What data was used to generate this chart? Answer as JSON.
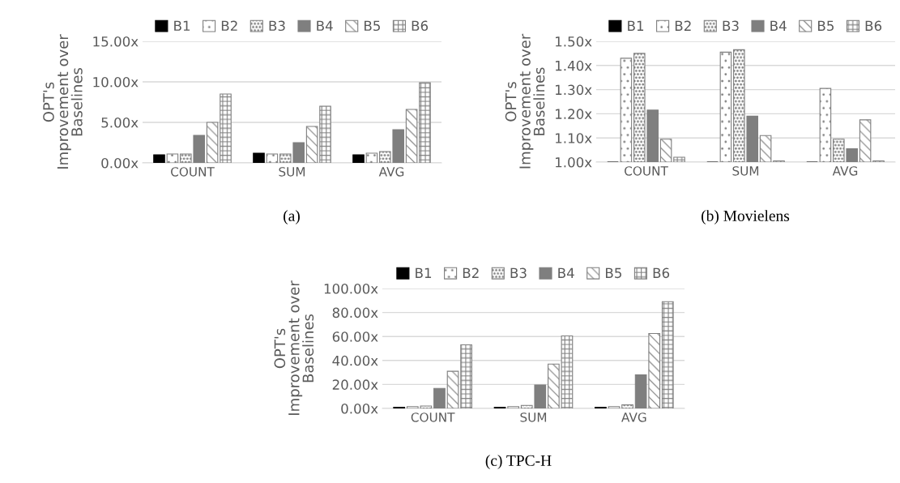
{
  "chart_data": [
    {
      "type": "bar",
      "categories": [
        "COUNT",
        "SUM",
        "AVG"
      ],
      "ylabel": "OPT's\nImprovement over\nBaselines",
      "legend": "top",
      "grid": "y",
      "ylim": [
        0,
        15
      ],
      "yticks": [
        {
          "value": 0,
          "label": "0.00x"
        },
        {
          "value": 5,
          "label": "5.00x"
        },
        {
          "value": 10,
          "label": "10.00x"
        },
        {
          "value": 15,
          "label": "15.00x"
        }
      ],
      "annotations": [
        "(a)"
      ],
      "series": [
        {
          "name": "B1",
          "color": "#000000",
          "values": [
            1.0,
            1.2,
            1.0
          ]
        },
        {
          "name": "B2",
          "color": "#7f7f7f",
          "values": [
            1.1,
            1.1,
            1.2
          ]
        },
        {
          "name": "B3",
          "color": "#7f7f7f",
          "values": [
            1.1,
            1.1,
            1.4
          ]
        },
        {
          "name": "B4",
          "color": "#7f7f7f",
          "values": [
            3.4,
            2.5,
            4.1
          ]
        },
        {
          "name": "B5",
          "color": "#7f7f7f",
          "values": [
            5.0,
            4.5,
            6.6
          ]
        },
        {
          "name": "B6",
          "color": "#7f7f7f",
          "values": [
            8.5,
            7.0,
            9.9
          ]
        }
      ]
    },
    {
      "type": "bar",
      "categories": [
        "COUNT",
        "SUM",
        "AVG"
      ],
      "ylabel": "OPT's\nImprovement over\nBaselines",
      "legend": "top",
      "grid": "y",
      "ylim": [
        1,
        1.5
      ],
      "yticks": [
        {
          "value": 1.0,
          "label": "1.00x"
        },
        {
          "value": 1.1,
          "label": "1.10x"
        },
        {
          "value": 1.2,
          "label": "1.20x"
        },
        {
          "value": 1.3,
          "label": "1.30x"
        },
        {
          "value": 1.4,
          "label": "1.40x"
        },
        {
          "value": 1.5,
          "label": "1.50x"
        }
      ],
      "annotations": [
        "(b) Movielens"
      ],
      "series": [
        {
          "name": "B1",
          "color": "#000000",
          "values": [
            1.0,
            1.0,
            1.0
          ]
        },
        {
          "name": "B2",
          "color": "#7f7f7f",
          "values": [
            1.43,
            1.455,
            1.305
          ]
        },
        {
          "name": "B3",
          "color": "#7f7f7f",
          "values": [
            1.45,
            1.465,
            1.095
          ]
        },
        {
          "name": "B4",
          "color": "#7f7f7f",
          "values": [
            1.215,
            1.19,
            1.055
          ]
        },
        {
          "name": "B5",
          "color": "#7f7f7f",
          "values": [
            1.095,
            1.11,
            1.175
          ]
        },
        {
          "name": "B6",
          "color": "#7f7f7f",
          "values": [
            1.02,
            1.005,
            1.005
          ]
        }
      ]
    },
    {
      "type": "bar",
      "categories": [
        "COUNT",
        "SUM",
        "AVG"
      ],
      "ylabel": "OPT's\nImprovement over\nBaselines",
      "legend": "top",
      "grid": "y",
      "ylim": [
        0,
        100
      ],
      "yticks": [
        {
          "value": 0,
          "label": "0.00x"
        },
        {
          "value": 20,
          "label": "20.00x"
        },
        {
          "value": 40,
          "label": "40.00x"
        },
        {
          "value": 60,
          "label": "60.00x"
        },
        {
          "value": 80,
          "label": "80.00x"
        },
        {
          "value": 100,
          "label": "100.00x"
        }
      ],
      "annotations": [
        "(c) TPC-H"
      ],
      "series": [
        {
          "name": "B1",
          "color": "#000000",
          "values": [
            1.0,
            1.0,
            1.0
          ]
        },
        {
          "name": "B2",
          "color": "#7f7f7f",
          "values": [
            1.5,
            1.5,
            1.5
          ]
        },
        {
          "name": "B3",
          "color": "#7f7f7f",
          "values": [
            2.0,
            2.5,
            3.0
          ]
        },
        {
          "name": "B4",
          "color": "#7f7f7f",
          "values": [
            16.7,
            19.6,
            28
          ]
        },
        {
          "name": "B5",
          "color": "#7f7f7f",
          "values": [
            31,
            37,
            62.5
          ]
        },
        {
          "name": "B6",
          "color": "#7f7f7f",
          "values": [
            53,
            60.5,
            89
          ]
        }
      ]
    }
  ]
}
